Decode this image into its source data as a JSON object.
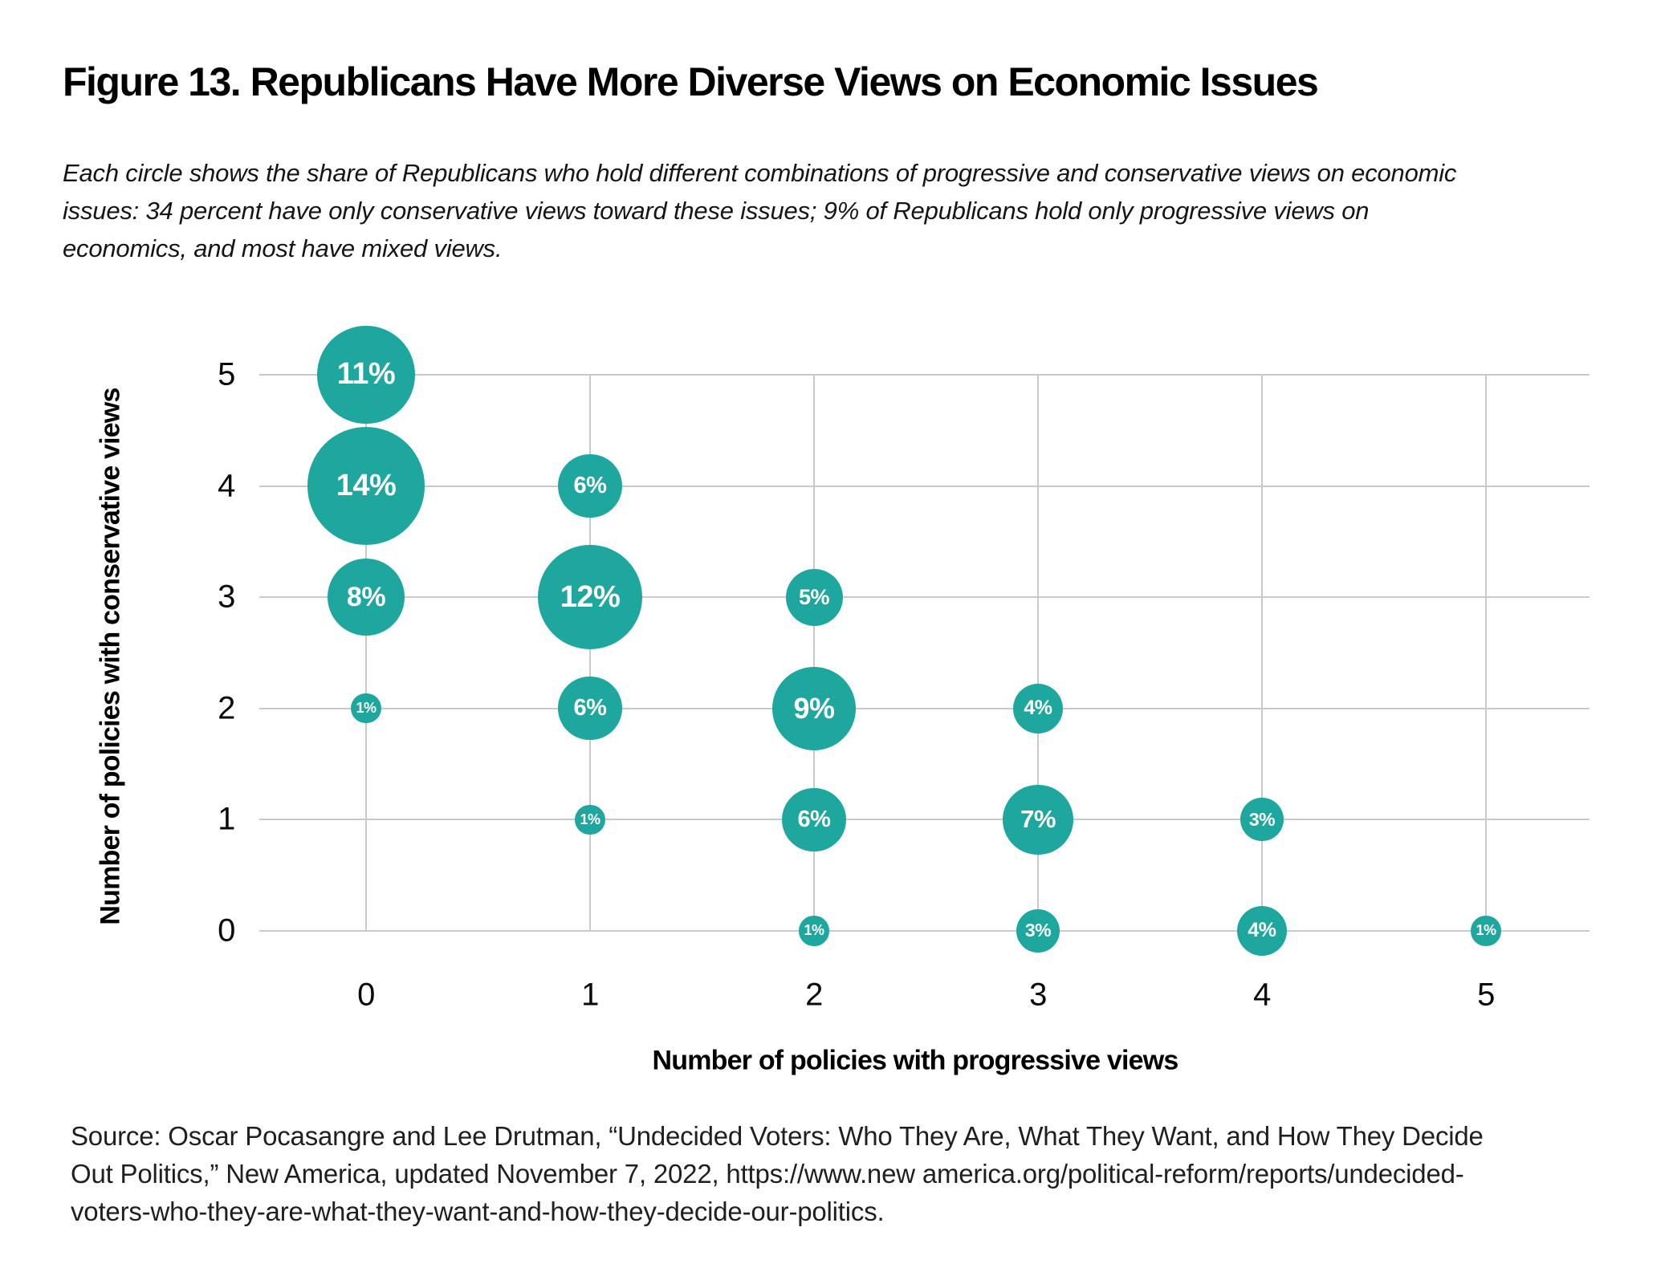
{
  "figure": {
    "title": "Figure 13. Republicans Have More Diverse Views on Economic Issues",
    "subtitle": "Each circle shows the share of Republicans who hold different combinations of progressive and conservative views on economic\nissues: 34 percent have only conservative views toward these issues; 9% of Republicans hold only progressive views on\neconomics, and most have mixed views.",
    "source": "Source: Oscar Pocasangre and Lee Drutman, “Undecided Voters: Who They Are, What They Want, and How They Decide\nOut Politics,” New America, updated November 7, 2022, https://www.new america.org/political-reform/reports/undecided-\nvoters-who-they-are-what-they-want-and-how-they-decide-our-politics."
  },
  "chart_data": {
    "type": "scatter",
    "subtype": "bubble",
    "xlabel": "Number of policies with progressive views",
    "ylabel": "Number of policies with conservative views",
    "x_ticks": [
      0,
      1,
      2,
      3,
      4,
      5
    ],
    "y_ticks": [
      0,
      1,
      2,
      3,
      4,
      5
    ],
    "xlim": [
      -0.5,
      5.5
    ],
    "ylim": [
      -0.5,
      5.5
    ],
    "grid": true,
    "legend": "none",
    "value_unit": "%",
    "points": [
      {
        "x": 0,
        "y": 5,
        "value": 11
      },
      {
        "x": 0,
        "y": 4,
        "value": 14
      },
      {
        "x": 0,
        "y": 3,
        "value": 8
      },
      {
        "x": 0,
        "y": 2,
        "value": 1
      },
      {
        "x": 1,
        "y": 4,
        "value": 6
      },
      {
        "x": 1,
        "y": 3,
        "value": 12
      },
      {
        "x": 1,
        "y": 2,
        "value": 6
      },
      {
        "x": 1,
        "y": 1,
        "value": 1
      },
      {
        "x": 2,
        "y": 3,
        "value": 5
      },
      {
        "x": 2,
        "y": 2,
        "value": 9
      },
      {
        "x": 2,
        "y": 1,
        "value": 6
      },
      {
        "x": 2,
        "y": 0,
        "value": 1
      },
      {
        "x": 3,
        "y": 2,
        "value": 4
      },
      {
        "x": 3,
        "y": 1,
        "value": 7
      },
      {
        "x": 3,
        "y": 0,
        "value": 3
      },
      {
        "x": 4,
        "y": 1,
        "value": 3
      },
      {
        "x": 4,
        "y": 0,
        "value": 4
      },
      {
        "x": 5,
        "y": 0,
        "value": 1
      }
    ],
    "colors": {
      "bubble": "#1da79e",
      "bubble_label": "#ffffff",
      "gridline": "#c9c9c9",
      "text": "#000000"
    }
  }
}
